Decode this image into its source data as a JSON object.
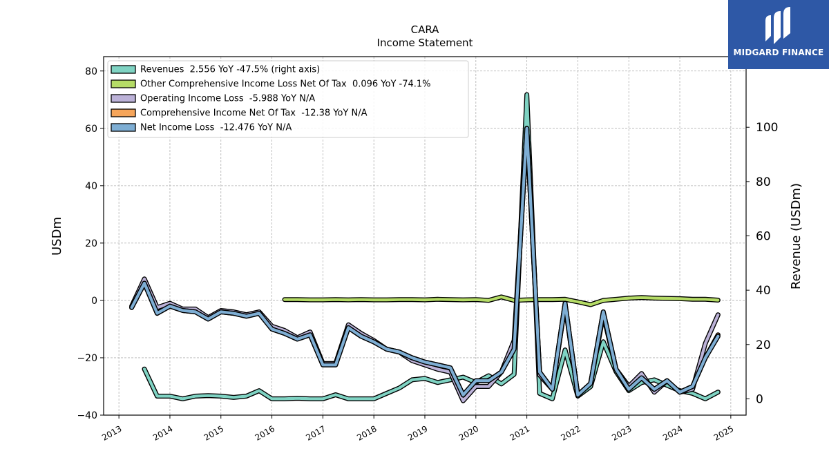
{
  "brand": {
    "name": "MIDGARD FINANCE",
    "color": "#2e58a6"
  },
  "chart_data": {
    "type": "line",
    "title": "CARA",
    "subtitle": "Income Statement",
    "ylabel": "USDm",
    "ylabel_right": "Revenue (USDm)",
    "ylim": [
      -40,
      85
    ],
    "ylim_right": [
      -6,
      126
    ],
    "yticks": [
      -40,
      -20,
      0,
      20,
      40,
      60,
      80
    ],
    "yticks_right": [
      0,
      20,
      40,
      60,
      80,
      100
    ],
    "xlim": [
      2012.7,
      2025.3
    ],
    "xticks": [
      2013,
      2014,
      2015,
      2016,
      2017,
      2018,
      2019,
      2020,
      2021,
      2022,
      2023,
      2024,
      2025
    ],
    "grid": true,
    "legend_position": "upper-left",
    "series": [
      {
        "name": "Revenues  2.556 YoY -47.5% (right axis)",
        "color": "#7fd3c3",
        "axis": "right",
        "x": [
          2013.5,
          2013.75,
          2014.0,
          2014.25,
          2014.5,
          2014.75,
          2015.0,
          2015.25,
          2015.5,
          2015.75,
          2016.0,
          2016.25,
          2016.5,
          2016.75,
          2017.0,
          2017.25,
          2017.5,
          2017.75,
          2018.0,
          2018.25,
          2018.5,
          2018.75,
          2019.0,
          2019.25,
          2019.5,
          2019.75,
          2020.0,
          2020.25,
          2020.5,
          2020.75,
          2021.0,
          2021.25,
          2021.5,
          2021.75,
          2022.0,
          2022.25,
          2022.5,
          2022.75,
          2023.0,
          2023.25,
          2023.5,
          2023.75,
          2024.0,
          2024.25,
          2024.5,
          2024.75
        ],
        "values": [
          11,
          1,
          1,
          0,
          1,
          1.2,
          1,
          0.5,
          1,
          3,
          0,
          0,
          0.2,
          0,
          0,
          1.5,
          0,
          0,
          0,
          2,
          4,
          7,
          7.5,
          6,
          7,
          8,
          6,
          8.5,
          5.5,
          9,
          112,
          2,
          0,
          18,
          1,
          4.5,
          21,
          10,
          3,
          6,
          7,
          5,
          3,
          2,
          0,
          2.5
        ]
      },
      {
        "name": "Other Comprehensive Income Loss Net Of Tax  0.096 YoY -74.1%",
        "color": "#b5dc66",
        "axis": "left",
        "x": [
          2016.25,
          2016.5,
          2016.75,
          2017.0,
          2017.25,
          2017.5,
          2017.75,
          2018.0,
          2018.25,
          2018.5,
          2018.75,
          2019.0,
          2019.25,
          2019.5,
          2019.75,
          2020.0,
          2020.25,
          2020.5,
          2020.75,
          2021.0,
          2021.25,
          2021.5,
          2021.75,
          2022.0,
          2022.25,
          2022.5,
          2022.75,
          2023.0,
          2023.25,
          2023.5,
          2023.75,
          2024.0,
          2024.25,
          2024.5,
          2024.75
        ],
        "values": [
          0.3,
          0.3,
          0.2,
          0.2,
          0.3,
          0.2,
          0.3,
          0.2,
          0.2,
          0.3,
          0.3,
          0.2,
          0.4,
          0.3,
          0.2,
          0.3,
          0.0,
          1.2,
          0.0,
          0.2,
          0.3,
          0.3,
          0.4,
          -0.5,
          -1.5,
          0.0,
          0.4,
          0.8,
          1.0,
          0.8,
          0.7,
          0.6,
          0.4,
          0.4,
          0.1
        ]
      },
      {
        "name": "Operating Income Loss  -5.988 YoY N/A",
        "color": "#bcb2d8",
        "axis": "left",
        "x": [
          2013.25,
          2013.5,
          2013.75,
          2014.0,
          2014.25,
          2014.5,
          2014.75,
          2015.0,
          2015.25,
          2015.5,
          2015.75,
          2016.0,
          2016.25,
          2016.5,
          2016.75,
          2017.0,
          2017.25,
          2017.5,
          2017.75,
          2018.0,
          2018.25,
          2018.5,
          2018.75,
          2019.0,
          2019.25,
          2019.5,
          2019.75,
          2020.0,
          2020.25,
          2020.5,
          2020.75,
          2021.0,
          2021.25,
          2021.5,
          2021.75,
          2022.0,
          2022.25,
          2022.5,
          2022.75,
          2023.0,
          2023.25,
          2023.5,
          2023.75,
          2024.0,
          2024.25,
          2024.5,
          2024.75
        ],
        "values": [
          -2,
          7.5,
          -2.5,
          -1,
          -3,
          -3,
          -6,
          -3.5,
          -4,
          -5,
          -4,
          -9,
          -10.5,
          -13,
          -11,
          -22,
          -22,
          -8.5,
          -11.5,
          -14,
          -17,
          -18,
          -21,
          -22.5,
          -24,
          -25,
          -35,
          -30,
          -30,
          -25,
          -14,
          60,
          -26,
          -31,
          -1.5,
          -33,
          -29,
          -5,
          -24,
          -30,
          -25.5,
          -32,
          -28,
          -32,
          -31,
          -15,
          -5
        ]
      },
      {
        "name": "Comprehensive Income Net Of Tax  -12.38 YoY N/A",
        "color": "#f6a55a",
        "axis": "left",
        "x": [
          2013.25,
          2013.5,
          2013.75,
          2014.0,
          2014.25,
          2014.5,
          2014.75,
          2015.0,
          2015.25,
          2015.5,
          2015.75,
          2016.0,
          2016.25,
          2016.5,
          2016.75,
          2017.0,
          2017.25,
          2017.5,
          2017.75,
          2018.0,
          2018.25,
          2018.5,
          2018.75,
          2019.0,
          2019.25,
          2019.5,
          2019.75,
          2020.0,
          2020.25,
          2020.5,
          2020.75,
          2021.0,
          2021.25,
          2021.5,
          2021.75,
          2022.0,
          2022.25,
          2022.5,
          2022.75,
          2023.0,
          2023.25,
          2023.5,
          2023.75,
          2024.0,
          2024.25,
          2024.5,
          2024.75
        ],
        "values": [
          -2.5,
          6,
          -4.5,
          -2,
          -3.5,
          -4,
          -6.5,
          -4,
          -4.5,
          -5.5,
          -4.5,
          -10,
          -11.5,
          -13.5,
          -12,
          -22.5,
          -22.5,
          -9.5,
          -12.5,
          -14.5,
          -17,
          -18,
          -20,
          -21.5,
          -22.5,
          -23.5,
          -33,
          -28,
          -28,
          -25,
          -17,
          60,
          -25,
          -31,
          -1,
          -33,
          -29,
          -4,
          -24,
          -31,
          -27,
          -31,
          -28,
          -32,
          -30,
          -20,
          -12
        ]
      },
      {
        "name": "Net Income Loss  -12.476 YoY N/A",
        "color": "#7eaed4",
        "axis": "left",
        "x": [
          2013.25,
          2013.5,
          2013.75,
          2014.0,
          2014.25,
          2014.5,
          2014.75,
          2015.0,
          2015.25,
          2015.5,
          2015.75,
          2016.0,
          2016.25,
          2016.5,
          2016.75,
          2017.0,
          2017.25,
          2017.5,
          2017.75,
          2018.0,
          2018.25,
          2018.5,
          2018.75,
          2019.0,
          2019.25,
          2019.5,
          2019.75,
          2020.0,
          2020.25,
          2020.5,
          2020.75,
          2021.0,
          2021.25,
          2021.5,
          2021.75,
          2022.0,
          2022.25,
          2022.5,
          2022.75,
          2023.0,
          2023.25,
          2023.5,
          2023.75,
          2024.0,
          2024.25,
          2024.5,
          2024.75
        ],
        "values": [
          -2.5,
          6,
          -4.5,
          -2,
          -3.5,
          -4,
          -6.5,
          -4,
          -4.5,
          -5.5,
          -4.5,
          -10,
          -11.5,
          -13.5,
          -12,
          -22.5,
          -22.5,
          -9.5,
          -12.5,
          -14.5,
          -17,
          -18,
          -20,
          -21.5,
          -22.5,
          -23.5,
          -33,
          -28,
          -28,
          -25,
          -17,
          60,
          -25,
          -31,
          -1,
          -33,
          -29,
          -4,
          -24,
          -31,
          -27,
          -31,
          -28,
          -32,
          -30,
          -20,
          -12.5
        ]
      }
    ]
  }
}
